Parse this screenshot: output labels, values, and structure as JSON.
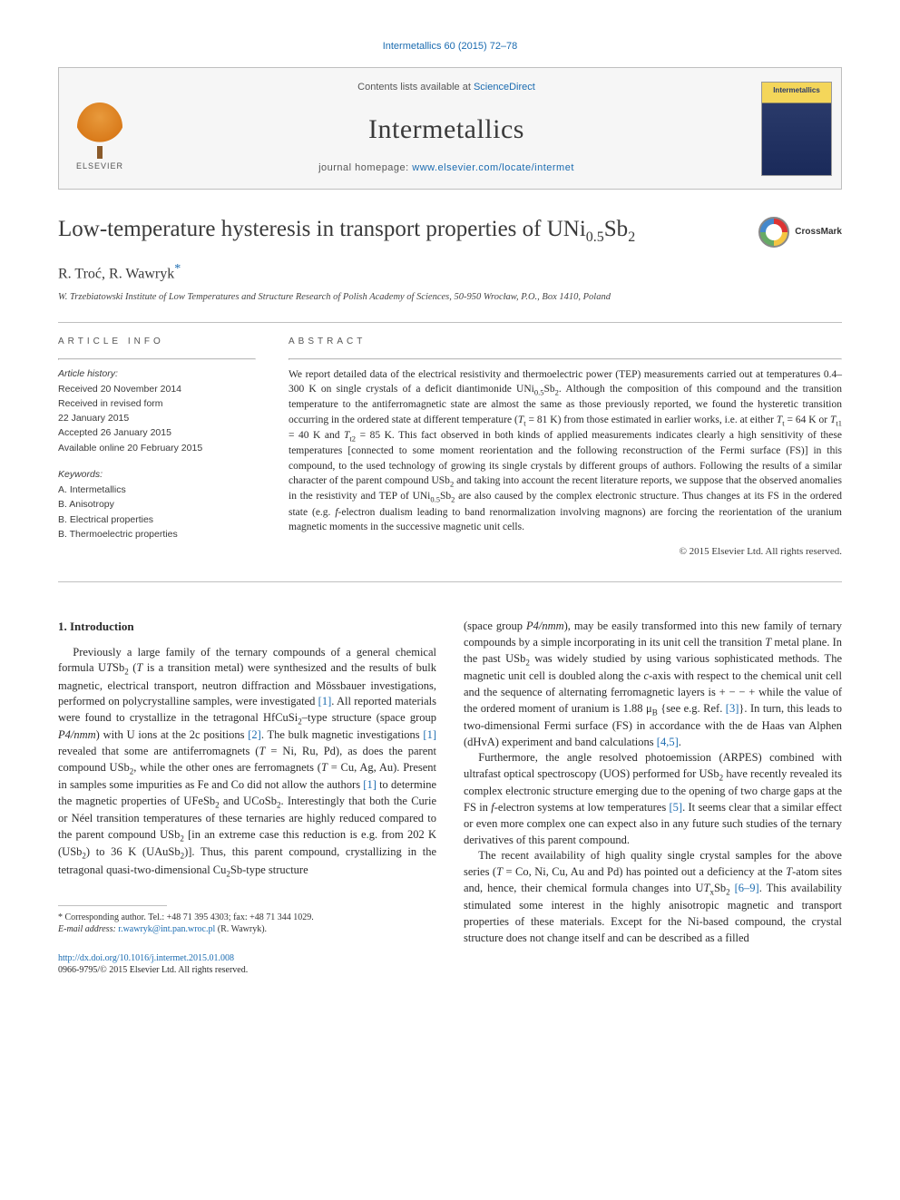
{
  "citation": "Intermetallics 60 (2015) 72–78",
  "header": {
    "contents_prefix": "Contents lists available at ",
    "contents_link": "ScienceDirect",
    "journal": "Intermetallics",
    "homepage_prefix": "journal homepage: ",
    "homepage_url": "www.elsevier.com/locate/intermet",
    "publisher": "ELSEVIER",
    "cover_label": "Intermetallics"
  },
  "crossmark": "CrossMark",
  "title_html": "Low-temperature hysteresis in transport properties of UNi<sub>0.5</sub>Sb<sub>2</sub>",
  "authors_html": "R. Troć, R. Wawryk<span class=\"corr\">*</span>",
  "affiliation": "W. Trzebiatowski Institute of Low Temperatures and Structure Research of Polish Academy of Sciences, 50-950 Wrocław, P.O., Box 1410, Poland",
  "article_info_heading": "ARTICLE INFO",
  "abstract_heading": "ABSTRACT",
  "history": {
    "label": "Article history:",
    "items": [
      "Received 20 November 2014",
      "Received in revised form",
      "22 January 2015",
      "Accepted 26 January 2015",
      "Available online 20 February 2015"
    ]
  },
  "keywords": {
    "label": "Keywords:",
    "items": [
      "A. Intermetallics",
      "B. Anisotropy",
      "B. Electrical properties",
      "B. Thermoelectric properties"
    ]
  },
  "abstract_html": "We report detailed data of the electrical resistivity and thermoelectric power (TEP) measurements carried out at temperatures 0.4–300 K on single crystals of a deficit diantimonide UNi<sub>0.5</sub>Sb<sub>2</sub>. Although the composition of this compound and the transition temperature to the antiferromagnetic state are almost the same as those previously reported, we found the hysteretic transition occurring in the ordered state at different temperature (<i>T</i><sub>t</sub> = 81 K) from those estimated in earlier works, i.e. at either <i>T</i><sub>t</sub> = 64 K or <i>T</i><sub>t1</sub> = 40 K and <i>T</i><sub>t2</sub> = 85 K. This fact observed in both kinds of applied measurements indicates clearly a high sensitivity of these temperatures [connected to some moment reorientation and the following reconstruction of the Fermi surface (FS)] in this compound, to the used technology of growing its single crystals by different groups of authors. Following the results of a similar character of the parent compound USb<sub>2</sub> and taking into account the recent literature reports, we suppose that the observed anomalies in the resistivity and TEP of UNi<sub>0.5</sub>Sb<sub>2</sub> are also caused by the complex electronic structure. Thus changes at its FS in the ordered state (e.g. <i>f</i>-electron dualism leading to band renormalization involving magnons) are forcing the reorientation of the uranium magnetic moments in the successive magnetic unit cells.",
  "copyright": "© 2015 Elsevier Ltd. All rights reserved.",
  "section1_heading": "1. Introduction",
  "body_paragraphs_html": [
    "Previously a large family of the ternary compounds of a general chemical formula U<i>T</i>Sb<sub>2</sub> (<i>T</i> is a transition metal) were synthesized and the results of bulk magnetic, electrical transport, neutron diffraction and Mössbauer investigations, performed on polycrystalline samples, were investigated <span class=\"ref\">[1]</span>. All reported materials were found to crystallize in the tetragonal HfCuSi<sub>2</sub>–type structure (space group <i>P4/nmm</i>) with U ions at the 2c positions <span class=\"ref\">[2]</span>. The bulk magnetic investigations <span class=\"ref\">[1]</span> revealed that some are antiferromagnets (<i>T</i> = Ni, Ru, Pd), as does the parent compound USb<sub>2</sub>, while the other ones are ferromagnets (<i>T</i> = Cu, Ag, Au). Present in samples some impurities as Fe and Co did not allow the authors <span class=\"ref\">[1]</span> to determine the magnetic properties of UFeSb<sub>2</sub> and UCoSb<sub>2</sub>. Interestingly that both the Curie or Néel transition temperatures of these ternaries are highly reduced compared to the parent compound USb<sub>2</sub> [in an extreme case this reduction is e.g. from 202 K (USb<sub>2</sub>) to 36 K (UAuSb<sub>2</sub>)]. Thus, this parent compound, crystallizing in the tetragonal quasi-two-dimensional Cu<sub>2</sub>Sb-type structure",
    "(space group <i>P4/nmm</i>), may be easily transformed into this new family of ternary compounds by a simple incorporating in its unit cell the transition <i>T</i> metal plane. In the past USb<sub>2</sub> was widely studied by using various sophisticated methods. The magnetic unit cell is doubled along the <i>c</i>-axis with respect to the chemical unit cell and the sequence of alternating ferromagnetic layers is + − − + while the value of the ordered moment of uranium is 1.88 μ<sub>B</sub> {see e.g. Ref. <span class=\"ref\">[3]</span>}. In turn, this leads to two-dimensional Fermi surface (FS) in accordance with the de Haas van Alphen (dHvA) experiment and band calculations <span class=\"ref\">[4,5]</span>.",
    "Furthermore, the angle resolved photoemission (ARPES) combined with ultrafast optical spectroscopy (UOS) performed for USb<sub>2</sub> have recently revealed its complex electronic structure emerging due to the opening of two charge gaps at the FS in <i>f</i>-electron systems at low temperatures <span class=\"ref\">[5]</span>. It seems clear that a similar effect or even more complex one can expect also in any future such studies of the ternary derivatives of this parent compound.",
    "The recent availability of high quality single crystal samples for the above series (<i>T</i> = Co, Ni, Cu, Au and Pd) has pointed out a deficiency at the <i>T</i>-atom sites and, hence, their chemical formula changes into U<i>T</i><sub>x</sub>Sb<sub>2</sub> <span class=\"ref\">[6–9]</span>. This availability stimulated some interest in the highly anisotropic magnetic and transport properties of these materials. Except for the Ni-based compound, the crystal structure does not change itself and can be described as a filled"
  ],
  "footnote": {
    "corr_label": "* Corresponding author. Tel.: +48 71 395 4303; fax: +48 71 344 1029.",
    "email_label": "E-mail address: ",
    "email": "r.wawryk@int.pan.wroc.pl",
    "email_suffix": " (R. Wawryk)."
  },
  "bottom": {
    "doi": "http://dx.doi.org/10.1016/j.intermet.2015.01.008",
    "issn_line": "0966-9795/© 2015 Elsevier Ltd. All rights reserved."
  }
}
